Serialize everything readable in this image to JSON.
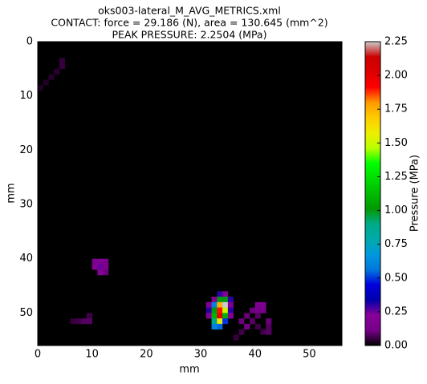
{
  "chart_data": {
    "type": "heatmap",
    "title": [
      "oks003-lateral_M_AVG_METRICS.xml",
      "CONTACT: force = 29.186 (N), area = 130.645 (mm^2)",
      "PEAK PRESSURE: 2.2504 (MPa)"
    ],
    "xlabel": "mm",
    "ylabel": "mm",
    "colorbar_label": "Pressure (MPa)",
    "colormap": "nipy_spectral",
    "xlim": [
      0,
      56
    ],
    "ylim": [
      0,
      56
    ],
    "invert_y": true,
    "xticks": [
      0,
      10,
      20,
      30,
      40,
      50
    ],
    "yticks": [
      0,
      10,
      20,
      30,
      40,
      50
    ],
    "clim": [
      0,
      2.25
    ],
    "cticks": [
      {
        "value": 0,
        "label": "0.00"
      },
      {
        "value": 0.25,
        "label": "0.25"
      },
      {
        "value": 0.5,
        "label": "0.50"
      },
      {
        "value": 0.75,
        "label": "0.75"
      },
      {
        "value": 1,
        "label": "1.00"
      },
      {
        "value": 1.25,
        "label": "1.25"
      },
      {
        "value": 1.5,
        "label": "1.50"
      },
      {
        "value": 1.75,
        "label": "1.75"
      },
      {
        "value": 2,
        "label": "2.00"
      },
      {
        "value": 2.25,
        "label": "2.25"
      }
    ],
    "cells": [
      [
        4,
        3,
        0.05
      ],
      [
        4,
        4,
        0.05
      ],
      [
        3,
        5,
        0.04
      ],
      [
        2,
        6,
        0.04
      ],
      [
        1,
        7,
        0.03
      ],
      [
        0,
        8,
        0.03
      ],
      [
        10,
        40,
        0.15
      ],
      [
        11,
        40,
        0.18
      ],
      [
        12,
        40,
        0.12
      ],
      [
        10,
        41,
        0.2
      ],
      [
        11,
        41,
        0.25
      ],
      [
        12,
        41,
        0.15
      ],
      [
        11,
        42,
        0.22
      ],
      [
        12,
        42,
        0.1
      ],
      [
        6,
        51,
        0.05
      ],
      [
        7,
        51,
        0.06
      ],
      [
        8,
        51,
        0.08
      ],
      [
        9,
        50,
        0.06
      ],
      [
        9,
        51,
        0.08
      ],
      [
        33,
        46,
        0.3
      ],
      [
        34,
        46,
        0.2
      ],
      [
        32,
        47,
        0.2
      ],
      [
        33,
        47,
        1.0
      ],
      [
        34,
        47,
        1.0
      ],
      [
        35,
        47,
        0.3
      ],
      [
        31,
        48,
        0.2
      ],
      [
        32,
        48,
        0.6
      ],
      [
        33,
        48,
        1.75
      ],
      [
        34,
        48,
        2.25
      ],
      [
        35,
        48,
        0.15
      ],
      [
        31,
        49,
        0.3
      ],
      [
        32,
        49,
        1.0
      ],
      [
        33,
        49,
        1.9
      ],
      [
        34,
        49,
        1.5
      ],
      [
        35,
        49,
        0.3
      ],
      [
        31,
        50,
        0.2
      ],
      [
        32,
        50,
        1.1
      ],
      [
        33,
        50,
        2.0
      ],
      [
        34,
        50,
        1.1
      ],
      [
        35,
        50,
        0.2
      ],
      [
        32,
        51,
        0.9
      ],
      [
        33,
        51,
        1.6
      ],
      [
        34,
        51,
        0.5
      ],
      [
        32,
        52,
        0.6
      ],
      [
        33,
        52,
        0.55
      ],
      [
        40,
        48,
        0.15
      ],
      [
        41,
        48,
        0.15
      ],
      [
        39,
        49,
        0.1
      ],
      [
        40,
        49,
        0.12
      ],
      [
        41,
        49,
        0.12
      ],
      [
        38,
        50,
        0.1
      ],
      [
        40,
        50,
        0.08
      ],
      [
        37,
        51,
        0.1
      ],
      [
        39,
        51,
        0.08
      ],
      [
        42,
        51,
        0.1
      ],
      [
        38,
        52,
        0.12
      ],
      [
        40,
        52,
        0.06
      ],
      [
        42,
        52,
        0.08
      ],
      [
        37,
        53,
        0.06
      ],
      [
        41,
        53,
        0.06
      ],
      [
        42,
        53,
        0.08
      ],
      [
        36,
        54,
        0.05
      ]
    ]
  }
}
